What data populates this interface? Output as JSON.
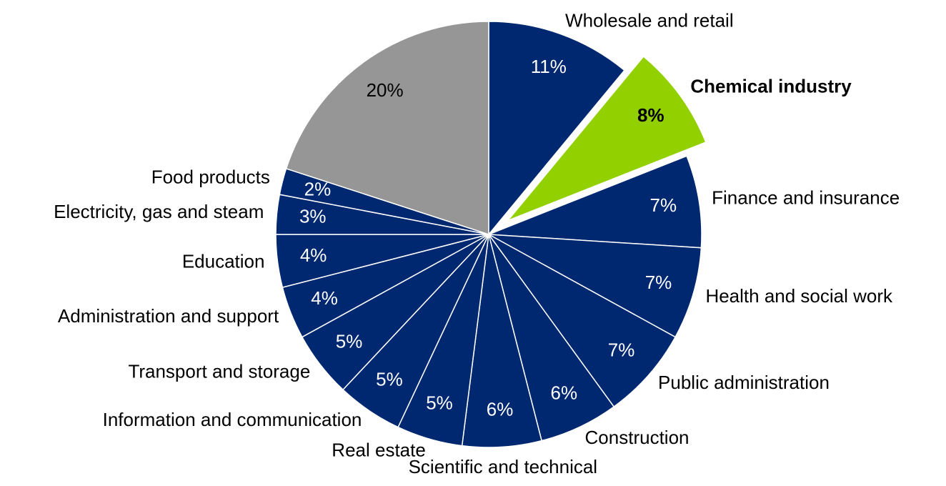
{
  "chart_data": {
    "type": "pie",
    "categories": [
      "Wholesale and retail",
      "Chemical industry",
      "Finance and insurance",
      "Health and social work",
      "Public administration",
      "Construction",
      "Scientific and technical",
      "Real estate",
      "Information and communication",
      "Transport and storage",
      "Administration and support",
      "Education",
      "Electricity, gas and steam",
      "Food products",
      null
    ],
    "values": [
      11,
      8,
      7,
      7,
      7,
      6,
      6,
      5,
      5,
      5,
      4,
      4,
      3,
      2,
      20
    ],
    "value_labels": [
      "11%",
      "8%",
      "7%",
      "7%",
      "7%",
      "6%",
      "6%",
      "5%",
      "5%",
      "5%",
      "4%",
      "4%",
      "3%",
      "2%",
      "20%"
    ],
    "colors": [
      "#002870",
      "#92d000",
      "#002870",
      "#002870",
      "#002870",
      "#002870",
      "#002870",
      "#002870",
      "#002870",
      "#002870",
      "#002870",
      "#002870",
      "#002870",
      "#002870",
      "#969696"
    ],
    "exploded": [
      "Chemical industry"
    ]
  }
}
